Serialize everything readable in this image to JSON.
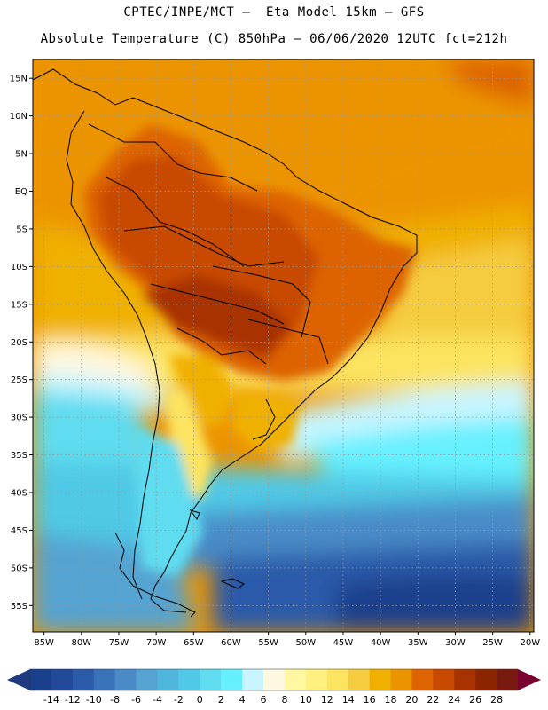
{
  "header": {
    "line1": "CPTEC/INPE/MCT –  Eta Model 15km – GFS",
    "line2": "Absolute Temperature (C) 850hPa – 06/06/2020 12UTC fct=212h"
  },
  "map": {
    "lat_labels": [
      "15N",
      "10N",
      "5N",
      "EQ",
      "5S",
      "10S",
      "15S",
      "20S",
      "25S",
      "30S",
      "35S",
      "40S",
      "45S",
      "50S",
      "55S"
    ],
    "lon_labels": [
      "85W",
      "80W",
      "75W",
      "70W",
      "65W",
      "60W",
      "55W",
      "50W",
      "45W",
      "40W",
      "35W",
      "30W",
      "25W",
      "20W"
    ],
    "lat_range": [
      17.5,
      -58.5
    ],
    "lon_range": [
      -86.5,
      -19.5
    ],
    "grid": true
  },
  "colorbar": {
    "labels": [
      "-14",
      "-12",
      "-10",
      "-8",
      "-6",
      "-4",
      "-2",
      "0",
      "2",
      "4",
      "6",
      "8",
      "10",
      "12",
      "14",
      "16",
      "18",
      "20",
      "22",
      "24",
      "26",
      "28"
    ],
    "colors": [
      "#1a3f8c",
      "#22499a",
      "#2b5aa9",
      "#3a72b9",
      "#4a8bc7",
      "#55a3d1",
      "#4fb6dc",
      "#4fc9e6",
      "#5fdcf0",
      "#66f0ff",
      "#c8f5ff",
      "#fff8e0",
      "#fff8a0",
      "#fff080",
      "#fce460",
      "#f5cc40",
      "#f0b000",
      "#ec9400",
      "#dd6400",
      "#c84a00",
      "#a83200",
      "#8c2400",
      "#781a10"
    ],
    "extend_left_color": "#203a80",
    "extend_right_color": "#780030"
  },
  "colors": {
    "ocean_north": "#ec9400",
    "ocean_cold": "#2b5aa9",
    "land_hot": "#c84a00"
  }
}
